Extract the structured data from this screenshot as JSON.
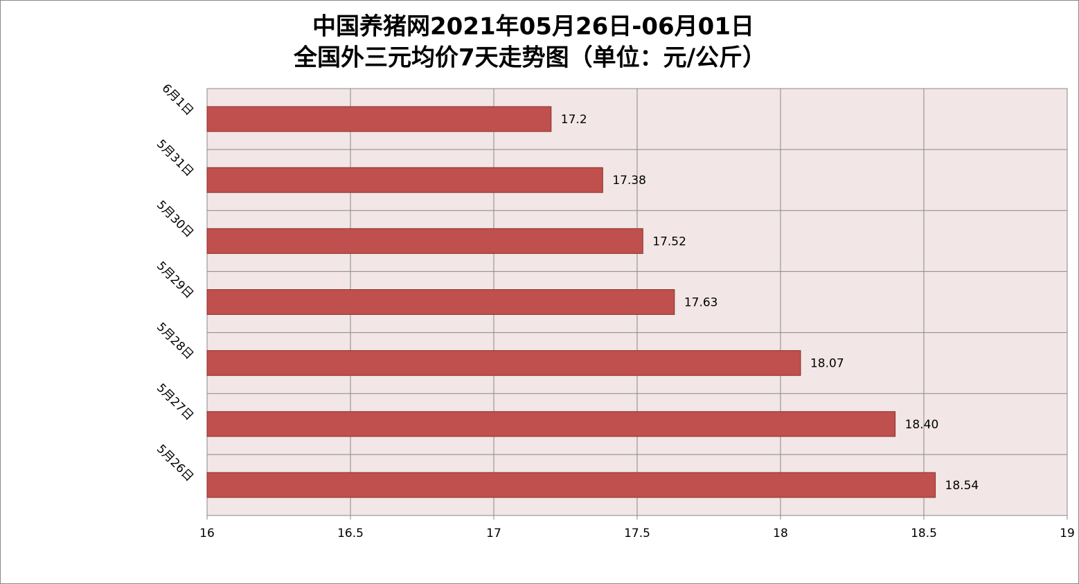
{
  "chart_data": {
    "type": "bar",
    "orientation": "horizontal",
    "title": "中国养猪网2021年05月26日-06月01日",
    "subtitle": "全国外三元均价7天走势图（单位：元/公斤）",
    "categories": [
      "6月1日",
      "5月31日",
      "5月30日",
      "5月29日",
      "5月28日",
      "5月27日",
      "5月26日"
    ],
    "values": [
      17.2,
      17.38,
      17.52,
      17.63,
      18.07,
      18.4,
      18.54
    ],
    "value_labels": [
      "17.2",
      "17.38",
      "17.52",
      "17.63",
      "18.07",
      "18.40",
      "18.54"
    ],
    "color": "#c0504d",
    "xlim": [
      16,
      19
    ],
    "xticks": [
      16,
      16.5,
      17,
      17.5,
      18,
      18.5,
      19
    ],
    "grid": true
  }
}
